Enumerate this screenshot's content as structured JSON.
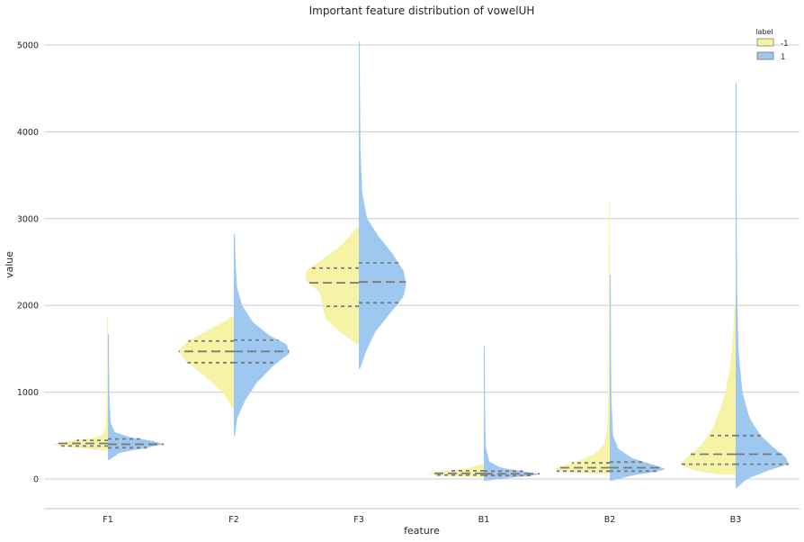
{
  "chart_data": {
    "type": "violin",
    "title": "Important feature distribution of vowelUH",
    "xlabel": "feature",
    "ylabel": "value",
    "categories": [
      "F1",
      "F2",
      "F3",
      "B1",
      "B2",
      "B3"
    ],
    "ylim": [
      -350,
      5200
    ],
    "yticks": [
      0,
      1000,
      2000,
      3000,
      4000,
      5000
    ],
    "grid": true,
    "legend": {
      "title": "label",
      "placement": "top-right",
      "entries": [
        {
          "label": "-1",
          "color": "#f6f2a6"
        },
        {
          "label": "1",
          "color": "#9ec8f0"
        }
      ]
    },
    "split": true,
    "inner": "quartile",
    "series": [
      {
        "name": "-1",
        "color": "#f6f2a6",
        "side": "left",
        "violins": [
          {
            "category": "F1",
            "min": 330,
            "max": 1870,
            "q1": 380,
            "median": 410,
            "q3": 445,
            "density": [
              [
                330,
                0.1
              ],
              [
                360,
                0.55
              ],
              [
                390,
                1.0
              ],
              [
                420,
                0.85
              ],
              [
                450,
                0.5
              ],
              [
                480,
                0.2
              ],
              [
                520,
                0.08
              ],
              [
                600,
                0.04
              ],
              [
                800,
                0.02
              ],
              [
                1200,
                0.01
              ],
              [
                1600,
                0.008
              ],
              [
                1870,
                0.005
              ]
            ]
          },
          {
            "category": "F2",
            "min": 820,
            "max": 1870,
            "q1": 1340,
            "median": 1470,
            "q3": 1590,
            "density": [
              [
                820,
                0.03
              ],
              [
                1000,
                0.2
              ],
              [
                1200,
                0.55
              ],
              [
                1350,
                0.85
              ],
              [
                1480,
                1.0
              ],
              [
                1600,
                0.8
              ],
              [
                1720,
                0.45
              ],
              [
                1820,
                0.15
              ],
              [
                1870,
                0.05
              ]
            ]
          },
          {
            "category": "F3",
            "min": 1560,
            "max": 2900,
            "q1": 1990,
            "median": 2260,
            "q3": 2430,
            "density": [
              [
                1560,
                0.05
              ],
              [
                1700,
                0.35
              ],
              [
                1850,
                0.6
              ],
              [
                2000,
                0.65
              ],
              [
                2150,
                0.7
              ],
              [
                2280,
                0.95
              ],
              [
                2400,
                0.95
              ],
              [
                2550,
                0.6
              ],
              [
                2700,
                0.3
              ],
              [
                2850,
                0.1
              ],
              [
                2900,
                0.04
              ]
            ]
          },
          {
            "category": "B1",
            "min": 20,
            "max": 170,
            "q1": 45,
            "median": 65,
            "q3": 95,
            "density": [
              [
                20,
                0.2
              ],
              [
                40,
                0.85
              ],
              [
                60,
                1.0
              ],
              [
                80,
                0.85
              ],
              [
                100,
                0.55
              ],
              [
                130,
                0.25
              ],
              [
                170,
                0.05
              ]
            ]
          },
          {
            "category": "B2",
            "min": 60,
            "max": 3190,
            "q1": 90,
            "median": 130,
            "q3": 185,
            "density": [
              [
                60,
                0.25
              ],
              [
                90,
                0.95
              ],
              [
                120,
                1.0
              ],
              [
                160,
                0.8
              ],
              [
                220,
                0.5
              ],
              [
                300,
                0.25
              ],
              [
                400,
                0.1
              ],
              [
                600,
                0.04
              ],
              [
                1000,
                0.025
              ],
              [
                2000,
                0.02
              ],
              [
                3000,
                0.018
              ],
              [
                3190,
                0.016
              ]
            ]
          },
          {
            "category": "B3",
            "min": 50,
            "max": 2000,
            "q1": 170,
            "median": 285,
            "q3": 500,
            "density": [
              [
                50,
                0.3
              ],
              [
                100,
                0.75
              ],
              [
                170,
                1.0
              ],
              [
                260,
                0.85
              ],
              [
                400,
                0.6
              ],
              [
                600,
                0.4
              ],
              [
                800,
                0.28
              ],
              [
                1000,
                0.18
              ],
              [
                1300,
                0.1
              ],
              [
                1600,
                0.05
              ],
              [
                2000,
                0.02
              ]
            ]
          }
        ]
      },
      {
        "name": "1",
        "color": "#9ec8f0",
        "side": "right",
        "violins": [
          {
            "category": "F1",
            "min": 220,
            "max": 1670,
            "q1": 360,
            "median": 400,
            "q3": 460,
            "density": [
              [
                220,
                0.03
              ],
              [
                300,
                0.2
              ],
              [
                360,
                0.7
              ],
              [
                400,
                1.0
              ],
              [
                440,
                0.8
              ],
              [
                480,
                0.4
              ],
              [
                540,
                0.12
              ],
              [
                650,
                0.05
              ],
              [
                900,
                0.03
              ],
              [
                1300,
                0.02
              ],
              [
                1670,
                0.015
              ]
            ]
          },
          {
            "category": "F2",
            "min": 500,
            "max": 2820,
            "q1": 1340,
            "median": 1470,
            "q3": 1600,
            "density": [
              [
                500,
                0.02
              ],
              [
                700,
                0.06
              ],
              [
                900,
                0.2
              ],
              [
                1100,
                0.4
              ],
              [
                1300,
                0.7
              ],
              [
                1450,
                1.0
              ],
              [
                1550,
                0.95
              ],
              [
                1650,
                0.65
              ],
              [
                1800,
                0.35
              ],
              [
                2000,
                0.15
              ],
              [
                2200,
                0.06
              ],
              [
                2500,
                0.03
              ],
              [
                2820,
                0.02
              ]
            ]
          },
          {
            "category": "F3",
            "min": 1270,
            "max": 5040,
            "q1": 2030,
            "median": 2270,
            "q3": 2490,
            "density": [
              [
                1270,
                0.02
              ],
              [
                1500,
                0.15
              ],
              [
                1700,
                0.3
              ],
              [
                1900,
                0.55
              ],
              [
                2100,
                0.8
              ],
              [
                2250,
                0.85
              ],
              [
                2400,
                0.8
              ],
              [
                2600,
                0.6
              ],
              [
                2800,
                0.35
              ],
              [
                3000,
                0.15
              ],
              [
                3300,
                0.06
              ],
              [
                3800,
                0.03
              ],
              [
                4500,
                0.02
              ],
              [
                5040,
                0.015
              ]
            ]
          },
          {
            "category": "B1",
            "min": -20,
            "max": 1530,
            "q1": 40,
            "median": 60,
            "q3": 90,
            "density": [
              [
                -20,
                0.05
              ],
              [
                10,
                0.4
              ],
              [
                40,
                0.9
              ],
              [
                60,
                1.0
              ],
              [
                90,
                0.7
              ],
              [
                130,
                0.3
              ],
              [
                200,
                0.1
              ],
              [
                350,
                0.04
              ],
              [
                600,
                0.025
              ],
              [
                1000,
                0.02
              ],
              [
                1530,
                0.015
              ]
            ]
          },
          {
            "category": "B2",
            "min": -20,
            "max": 2350,
            "q1": 90,
            "median": 130,
            "q3": 195,
            "density": [
              [
                -20,
                0.05
              ],
              [
                40,
                0.4
              ],
              [
                90,
                0.9
              ],
              [
                120,
                1.0
              ],
              [
                170,
                0.75
              ],
              [
                240,
                0.4
              ],
              [
                350,
                0.15
              ],
              [
                500,
                0.06
              ],
              [
                900,
                0.03
              ],
              [
                1500,
                0.022
              ],
              [
                2350,
                0.018
              ]
            ]
          },
          {
            "category": "B3",
            "min": -100,
            "max": 4560,
            "q1": 170,
            "median": 285,
            "q3": 500,
            "density": [
              [
                -100,
                0.03
              ],
              [
                0,
                0.2
              ],
              [
                100,
                0.6
              ],
              [
                170,
                0.95
              ],
              [
                250,
                0.9
              ],
              [
                350,
                0.7
              ],
              [
                500,
                0.45
              ],
              [
                700,
                0.25
              ],
              [
                1000,
                0.12
              ],
              [
                1500,
                0.05
              ],
              [
                2200,
                0.025
              ],
              [
                3200,
                0.018
              ],
              [
                4560,
                0.014
              ]
            ]
          }
        ]
      }
    ]
  }
}
